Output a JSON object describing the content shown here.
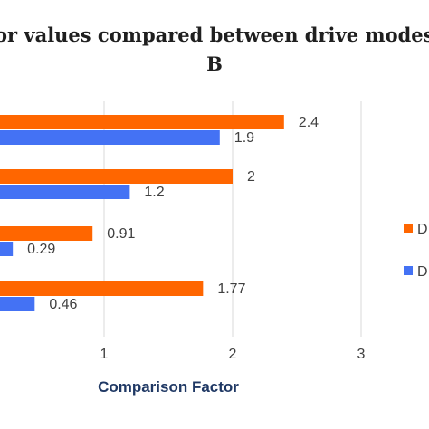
{
  "chart_data": {
    "type": "bar",
    "orientation": "horizontal",
    "title_lines": [
      "or values compared between drive modes A",
      "B"
    ],
    "xlabel": "Comparison Factor",
    "xlim": [
      0,
      3
    ],
    "xticks": [
      "1",
      "2",
      "3"
    ],
    "grid": true,
    "legend_placement": "right",
    "series": [
      {
        "legend_label": "D",
        "color": "#ff6600",
        "values": [
          2.4,
          2,
          0.91,
          1.77
        ],
        "labels": [
          "2.4",
          "2",
          "0.91",
          "1.77"
        ]
      },
      {
        "legend_label": "D",
        "color": "#4472f4",
        "values": [
          1.9,
          1.2,
          0.29,
          0.46
        ],
        "labels": [
          "1.9",
          "1.2",
          "0.29",
          "0.46"
        ]
      }
    ]
  }
}
